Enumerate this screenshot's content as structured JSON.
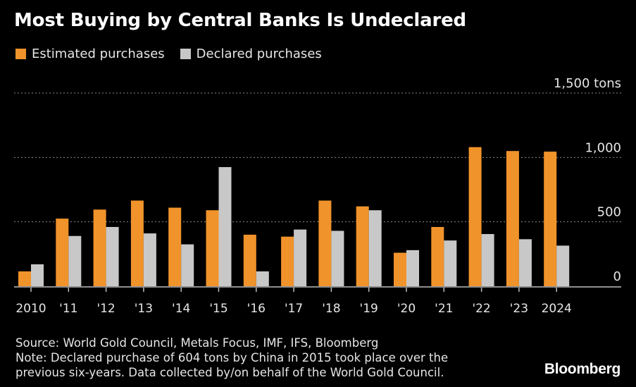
{
  "title": "Most Buying by Central Banks Is Undeclared",
  "legend": [
    {
      "label": "Estimated purchases",
      "color": "#f0932b"
    },
    {
      "label": "Declared purchases",
      "color": "#c8c8c8"
    }
  ],
  "chart_data": {
    "type": "bar",
    "categories": [
      "2010",
      "'11",
      "'12",
      "'13",
      "'14",
      "'15",
      "'16",
      "'17",
      "'18",
      "'19",
      "'20",
      "'21",
      "'22",
      "'23",
      "2024"
    ],
    "series": [
      {
        "name": "Estimated purchases",
        "color": "#f0932b",
        "values": [
          115,
          525,
          595,
          665,
          610,
          590,
          400,
          385,
          665,
          620,
          260,
          460,
          1080,
          1050,
          1045
        ]
      },
      {
        "name": "Declared purchases",
        "color": "#c8c8c8",
        "values": [
          170,
          390,
          460,
          410,
          325,
          925,
          115,
          440,
          430,
          590,
          280,
          355,
          405,
          365,
          315
        ]
      }
    ],
    "y_ticks": [
      {
        "value": 0,
        "label": "0"
      },
      {
        "value": 500,
        "label": "500"
      },
      {
        "value": 1000,
        "label": "1,000"
      },
      {
        "value": 1500,
        "label": "1,500 tons"
      }
    ],
    "ylim": [
      0,
      1500
    ],
    "grid": true,
    "legend_position": "top-left"
  },
  "footer": {
    "source": "Source: World Gold Council, Metals Focus, IMF, IFS, Bloomberg",
    "note_line1": "Note: Declared purchase of 604 tons by China in 2015 took place over the",
    "note_line2": "previous six-years. Data collected by/on behalf of the World Gold Council."
  },
  "brand": "Bloomberg"
}
